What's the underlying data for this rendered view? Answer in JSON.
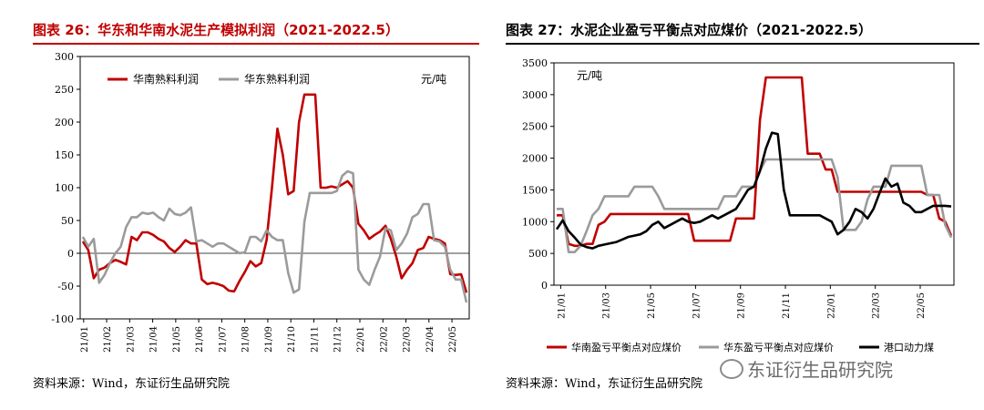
{
  "chart_data": [
    {
      "type": "line",
      "title": "图表 26：华东和华南水泥生产模拟利润（2021-2022.5）",
      "unit_label": "元/吨",
      "source": "资料来源：Wind，东证衍生品研究院",
      "ylim": [
        -100,
        300
      ],
      "yticks": [
        "300",
        "250",
        "200",
        "150",
        "100",
        "50",
        "0",
        "-50",
        "-100"
      ],
      "xtick_labels": [
        "21/01",
        "21/02",
        "21/03",
        "21/04",
        "21/05",
        "21/06",
        "21/07",
        "21/08",
        "21/09",
        "21/10",
        "21/11",
        "21/12",
        "22/01",
        "22/02",
        "22/03",
        "22/04",
        "22/05"
      ],
      "colors": {
        "华南熟料利润": "#c00000",
        "华东熟料利润": "#9b9b9b"
      },
      "series": [
        {
          "name": "华南熟料利润",
          "values": [
            18,
            5,
            -38,
            -25,
            -22,
            -15,
            -10,
            -13,
            -17,
            25,
            20,
            32,
            32,
            28,
            22,
            18,
            8,
            2,
            10,
            20,
            15,
            15,
            -40,
            -47,
            -45,
            -47,
            -50,
            -57,
            -58,
            -42,
            -28,
            -12,
            -20,
            -15,
            20,
            100,
            190,
            150,
            90,
            95,
            200,
            242,
            242,
            242,
            100,
            100,
            102,
            100,
            105,
            110,
            100,
            45,
            35,
            22,
            28,
            33,
            42,
            22,
            -5,
            -38,
            -25,
            -15,
            5,
            8,
            25,
            22,
            20,
            15,
            -32,
            -33,
            -32,
            -60
          ]
        },
        {
          "name": "华东熟料利润",
          "values": [
            25,
            10,
            22,
            -45,
            -33,
            -15,
            0,
            10,
            40,
            55,
            55,
            62,
            60,
            62,
            55,
            50,
            68,
            60,
            58,
            62,
            70,
            18,
            20,
            15,
            10,
            15,
            15,
            10,
            5,
            0,
            2,
            25,
            25,
            18,
            35,
            25,
            20,
            20,
            -30,
            -60,
            -55,
            48,
            92,
            92,
            92,
            92,
            92,
            95,
            118,
            125,
            122,
            -25,
            -40,
            -48,
            -25,
            -5,
            38,
            35,
            5,
            15,
            30,
            55,
            60,
            75,
            75,
            20,
            18,
            10,
            -25,
            -40,
            -40,
            -75
          ]
        }
      ]
    },
    {
      "type": "line",
      "title": "图表 27：水泥企业盈亏平衡点对应煤价（2021-2022.5）",
      "unit_label": "元/吨",
      "source": "资料来源：Wind，东证衍生品研究院",
      "ylim": [
        0,
        3500
      ],
      "yticks": [
        "3500",
        "3000",
        "2500",
        "2000",
        "1500",
        "1000",
        "500",
        "0"
      ],
      "xtick_labels": [
        "21/01",
        "21/03",
        "21/05",
        "21/07",
        "21/09",
        "21/11",
        "22/01",
        "22/03",
        "22/05"
      ],
      "colors": {
        "华南盈亏平衡点对应煤价": "#c00000",
        "华东盈亏平衡点对应煤价": "#9b9b9b",
        "港口动力煤": "#000000"
      },
      "series": [
        {
          "name": "华南盈亏平衡点对应煤价",
          "values": [
            1100,
            1100,
            650,
            620,
            620,
            650,
            650,
            950,
            1000,
            1120,
            1120,
            1120,
            1120,
            1120,
            1120,
            1120,
            1120,
            1120,
            1120,
            1120,
            1120,
            1120,
            1120,
            700,
            700,
            700,
            700,
            700,
            700,
            700,
            1050,
            1050,
            1050,
            1050,
            2600,
            3270,
            3270,
            3270,
            3270,
            3270,
            3270,
            3270,
            2070,
            2070,
            2070,
            1820,
            1820,
            1470,
            1470,
            1470,
            1470,
            1470,
            1470,
            1470,
            1470,
            1470,
            1470,
            1470,
            1470,
            1470,
            1470,
            1470,
            1420,
            1420,
            1050,
            1000,
            780
          ]
        },
        {
          "name": "华东盈亏平衡点对应煤价",
          "values": [
            1200,
            1200,
            520,
            520,
            620,
            850,
            1100,
            1200,
            1400,
            1400,
            1400,
            1400,
            1400,
            1550,
            1550,
            1550,
            1550,
            1400,
            1200,
            1200,
            1200,
            1200,
            1200,
            1200,
            1200,
            1200,
            1200,
            1200,
            1400,
            1400,
            1400,
            1550,
            1550,
            1550,
            1800,
            1980,
            1980,
            1980,
            1980,
            1980,
            1980,
            1980,
            1980,
            1980,
            1980,
            1980,
            1980,
            1700,
            870,
            870,
            870,
            1000,
            1350,
            1550,
            1550,
            1550,
            1880,
            1880,
            1880,
            1880,
            1880,
            1880,
            1420,
            1420,
            1420,
            950,
            750
          ]
        },
        {
          "name": "港口动力煤",
          "values": [
            880,
            1020,
            850,
            750,
            640,
            600,
            580,
            620,
            640,
            660,
            680,
            720,
            760,
            780,
            800,
            850,
            950,
            1000,
            900,
            950,
            1000,
            1050,
            1000,
            980,
            1000,
            1050,
            1100,
            1050,
            1100,
            1150,
            1200,
            1350,
            1500,
            1550,
            1800,
            2150,
            2400,
            2380,
            1500,
            1100,
            1100,
            1100,
            1100,
            1100,
            1100,
            1050,
            1000,
            800,
            870,
            1000,
            1200,
            1150,
            1050,
            1200,
            1450,
            1680,
            1550,
            1600,
            1300,
            1250,
            1150,
            1150,
            1200,
            1250,
            1250,
            1250,
            1240
          ]
        }
      ]
    }
  ],
  "watermark": "东证衍生品研究院"
}
